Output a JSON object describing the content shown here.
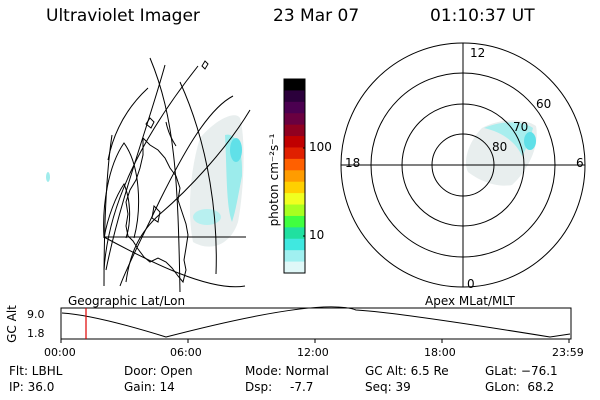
{
  "header": {
    "title": "Ultraviolet Imager",
    "date": "23 Mar 07",
    "time": "01:10:37 UT"
  },
  "colorbar": {
    "unit_label": "photon cm⁻²s⁻¹",
    "ticks": [
      "100",
      "10"
    ],
    "colors": [
      "#000000",
      "#2b003b",
      "#4b0050",
      "#6a0040",
      "#900020",
      "#c00000",
      "#e02000",
      "#ff6000",
      "#ff9c00",
      "#ffd000",
      "#f0ff20",
      "#a8ff20",
      "#40ff40",
      "#20e0a0",
      "#40e8e0",
      "#a0f0f0",
      "#e0f8f8"
    ]
  },
  "polar": {
    "labels": {
      "top": "12",
      "bottom": "0",
      "left": "18",
      "right": "6",
      "r60": "60",
      "r70": "70",
      "r80": "80"
    }
  },
  "map_labels": {
    "left": "Geographic Lat/Lon",
    "right": "Apex MLat/MLT"
  },
  "timeline": {
    "ylabel": "GC Alt",
    "y_top": "9.0",
    "y_bottom": "1.8",
    "x_ticks": [
      "00:00",
      "06:00",
      "12:00",
      "18:00",
      "23:59"
    ],
    "marker_color": "#e00000"
  },
  "info": {
    "flt": "Flt: LBHL",
    "ip": "IP: 36.0",
    "door": "Door: Open",
    "gain": "Gain: 14",
    "mode": "Mode: Normal",
    "dsp": "Dsp:",
    "dsp_val": "-7.7",
    "gcalt": "GC Alt: 6.5 Re",
    "seq": "Seq: 39",
    "glat": "GLat: −76.1",
    "glon": "GLon:  68.2"
  }
}
